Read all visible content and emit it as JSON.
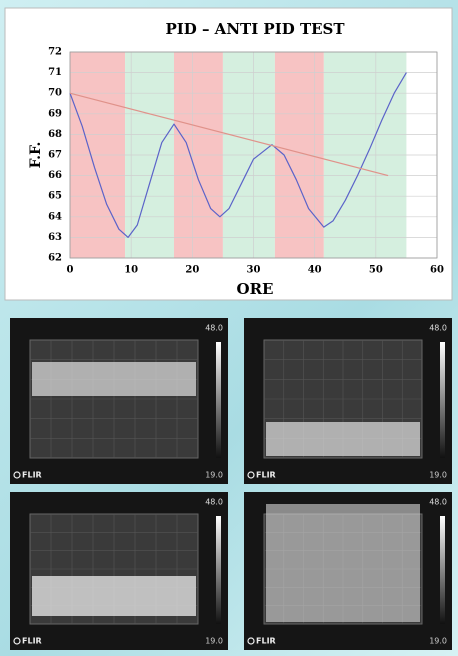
{
  "chart_data": {
    "type": "line",
    "title": "PID – ANTI PID TEST",
    "xlabel": "ORE",
    "ylabel": "F.F.",
    "xlim": [
      0,
      60
    ],
    "xticks": [
      0,
      10,
      20,
      30,
      40,
      50,
      60
    ],
    "ylim": [
      62,
      72
    ],
    "yticks": [
      62,
      63,
      64,
      65,
      66,
      67,
      68,
      69,
      70,
      71,
      72
    ],
    "grid": true,
    "bands": [
      {
        "start": 0,
        "end": 9,
        "color": "#f7c3c3"
      },
      {
        "start": 9,
        "end": 17,
        "color": "#d5efdf"
      },
      {
        "start": 17,
        "end": 25,
        "color": "#f7c3c3"
      },
      {
        "start": 25,
        "end": 33.5,
        "color": "#d5efdf"
      },
      {
        "start": 33.5,
        "end": 41.5,
        "color": "#f7c3c3"
      },
      {
        "start": 41.5,
        "end": 55,
        "color": "#d5efdf"
      }
    ],
    "series": [
      {
        "color": "#5b63c9",
        "x": [
          0,
          2,
          4,
          6,
          8,
          9.5,
          11,
          13,
          15,
          17,
          19,
          21,
          23,
          24.5,
          26,
          28,
          30,
          33,
          35,
          37,
          39,
          41.5,
          43,
          45,
          47,
          49,
          51,
          53,
          55
        ],
        "values": [
          70,
          68.4,
          66.4,
          64.6,
          63.4,
          63,
          63.6,
          65.6,
          67.6,
          68.5,
          67.6,
          65.8,
          64.4,
          64,
          64.4,
          65.6,
          66.8,
          67.5,
          67,
          65.8,
          64.4,
          63.5,
          63.8,
          64.8,
          66,
          67.3,
          68.7,
          70,
          71
        ]
      },
      {
        "color": "#e0928a",
        "x": [
          0,
          52
        ],
        "values": [
          70,
          66
        ]
      }
    ]
  },
  "thermal_images": [
    {
      "max": "48.0",
      "min": "19.0",
      "brand": "FLIR"
    },
    {
      "max": "48.0",
      "min": "19.0",
      "brand": "FLIR"
    },
    {
      "max": "48.0",
      "min": "19.0",
      "brand": "FLIR"
    },
    {
      "max": "48.0",
      "min": "19.0",
      "brand": "FLIR"
    }
  ]
}
